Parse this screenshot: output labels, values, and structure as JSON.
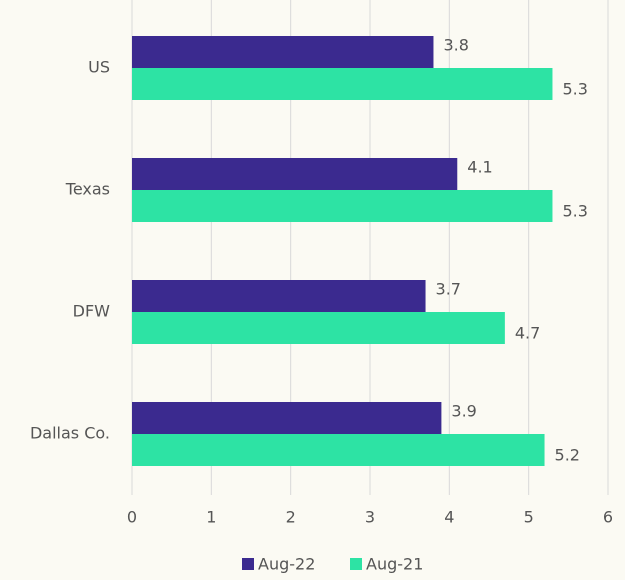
{
  "chart_data": {
    "type": "bar",
    "orientation": "horizontal",
    "categories": [
      "US",
      "Texas",
      "DFW",
      "Dallas Co."
    ],
    "series": [
      {
        "name": "Aug-22",
        "color": "#3b2a8f",
        "values": [
          3.8,
          4.1,
          3.7,
          3.9
        ]
      },
      {
        "name": "Aug-21",
        "color": "#2de3a4",
        "values": [
          5.3,
          5.3,
          4.7,
          5.2
        ]
      }
    ],
    "xlim": [
      0,
      6
    ],
    "xticks": [
      0,
      1,
      2,
      3,
      4,
      5,
      6
    ],
    "grid": true,
    "legend": "bottom",
    "data_labels": true
  }
}
